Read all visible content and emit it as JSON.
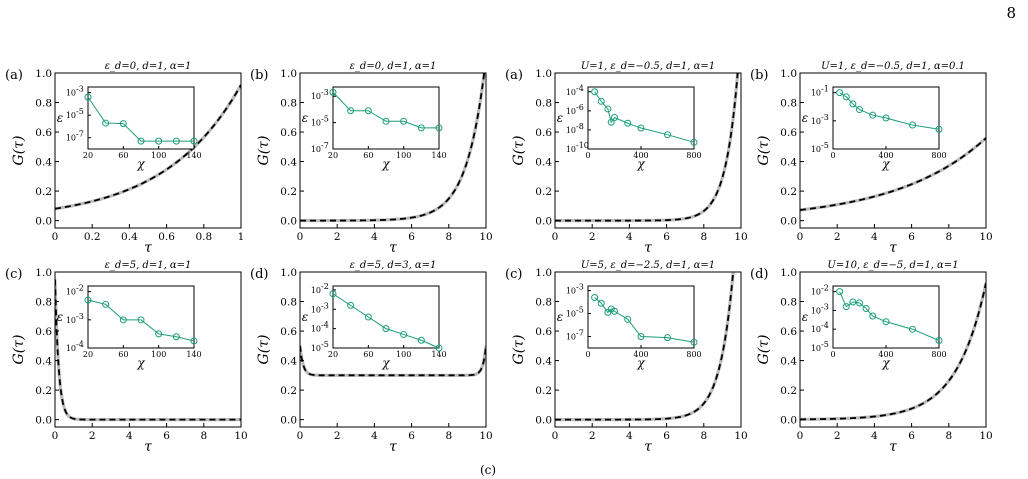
{
  "page": {
    "number": "8",
    "footer_fragment": "(c)"
  },
  "chart_data": [
    {
      "type": "line",
      "panel": "(a)",
      "title": "ε_d=0, d=1, α=1",
      "xlabel": "τ",
      "ylabel": "G(τ)",
      "xlim": [
        0,
        1
      ],
      "ylim": [
        -0.05,
        1.0
      ],
      "xticks": [
        0,
        0.2,
        0.4,
        0.6,
        0.8,
        1
      ],
      "yticks": [
        0.0,
        0.2,
        0.4,
        0.6,
        0.8,
        1.0
      ],
      "xticklabels": [
        "0",
        "0.2",
        "0.4",
        "0.6",
        "0.8",
        "1"
      ],
      "yticklabels": [
        "0.0",
        "0.2",
        "0.4",
        "0.6",
        "0.8",
        "1.0"
      ],
      "curve": {
        "model": "exp",
        "beta": 1,
        "a": 0.0803,
        "k": 2.438,
        "b": 0,
        "k2": 0
      },
      "series_styles": [
        "reference (solid gray)",
        "computed (dashed black)"
      ],
      "inset": {
        "xlabel": "χ",
        "ylabel": "ε",
        "log_y": true,
        "xlim": [
          20,
          140
        ],
        "ylim_exp": [
          -8,
          -2.5
        ],
        "xticks": [
          20,
          60,
          100,
          140
        ],
        "xticklabels": [
          "20",
          "60",
          "100",
          "140"
        ],
        "yticks": [
          -3,
          -5,
          -7
        ],
        "yticklabels": [
          "10",
          "10",
          "10"
        ],
        "yticksup": [
          "-3",
          "-5",
          "-7"
        ],
        "x": [
          20,
          40,
          60,
          80,
          100,
          120,
          140
        ],
        "log10_eps": [
          -3.4,
          -5.7,
          -5.75,
          -7.3,
          -7.3,
          -7.3,
          -7.3
        ]
      }
    },
    {
      "type": "line",
      "panel": "(b)",
      "title": "ε_d=0, d=1, α=1",
      "xlabel": "τ",
      "ylabel": "G(τ)",
      "xlim": [
        0,
        10
      ],
      "ylim": [
        -0.05,
        1.0
      ],
      "xticks": [
        0,
        2,
        4,
        6,
        8,
        10
      ],
      "yticks": [
        0.0,
        0.2,
        0.4,
        0.6,
        0.8,
        1.0
      ],
      "xticklabels": [
        "0",
        "2",
        "4",
        "6",
        "8",
        "10"
      ],
      "yticklabels": [
        "0.0",
        "0.2",
        "0.4",
        "0.6",
        "0.8",
        "1.0"
      ],
      "curve": {
        "model": "exp",
        "beta": 10,
        "a": 5e-05,
        "k": 1.0,
        "b": 0,
        "k2": 0
      },
      "series_styles": [
        "reference (solid gray)",
        "computed (dashed black)"
      ],
      "inset": {
        "xlabel": "χ",
        "ylabel": "ε",
        "log_y": true,
        "xlim": [
          20,
          140
        ],
        "ylim_exp": [
          -7,
          -2.3
        ],
        "xticks": [
          20,
          60,
          100,
          140
        ],
        "xticklabels": [
          "20",
          "60",
          "100",
          "140"
        ],
        "yticks": [
          -3,
          -5,
          -7
        ],
        "yticklabels": [
          "10",
          "10",
          "10"
        ],
        "yticksup": [
          "-3",
          "-5",
          "-7"
        ],
        "x": [
          20,
          40,
          60,
          80,
          100,
          120,
          140
        ],
        "log10_eps": [
          -2.7,
          -4.1,
          -4.1,
          -4.9,
          -4.9,
          -5.4,
          -5.4
        ]
      }
    },
    {
      "type": "line",
      "panel": "(a)",
      "title": "U=1, ε_d=−0.5, d=1, α=1",
      "xlabel": "τ",
      "ylabel": "G(τ)",
      "xlim": [
        0,
        10
      ],
      "ylim": [
        -0.05,
        1.0
      ],
      "xticks": [
        0,
        2,
        4,
        6,
        8,
        10
      ],
      "yticks": [
        0.0,
        0.2,
        0.4,
        0.6,
        0.8,
        1.0
      ],
      "xticklabels": [
        "0",
        "2",
        "4",
        "6",
        "8",
        "10"
      ],
      "yticklabels": [
        "0.0",
        "0.2",
        "0.4",
        "0.6",
        "0.8",
        "1.0"
      ],
      "curve": {
        "model": "exp",
        "beta": 10,
        "a": 4e-07,
        "k": 1.5,
        "b": 0,
        "k2": 0
      },
      "series_styles": [
        "reference (solid gray)",
        "computed (dashed black)"
      ],
      "inset": {
        "xlabel": "χ",
        "ylabel": "ε",
        "log_y": true,
        "xlim": [
          0,
          800
        ],
        "ylim_exp": [
          -10,
          -3.5
        ],
        "xticks": [
          0,
          400,
          800
        ],
        "xticklabels": [
          "0",
          "400",
          "800"
        ],
        "yticks": [
          -4,
          -6,
          -8,
          -10
        ],
        "yticklabels": [
          "10",
          "10",
          "10",
          "10"
        ],
        "yticksup": [
          "-4",
          "-6",
          "-8",
          "-10"
        ],
        "x": [
          50,
          100,
          150,
          175,
          200,
          300,
          400,
          600,
          800
        ],
        "log10_eps": [
          -4.0,
          -5.0,
          -5.8,
          -7.2,
          -6.7,
          -7.3,
          -7.8,
          -8.5,
          -9.3
        ]
      }
    },
    {
      "type": "line",
      "panel": "(b)",
      "title": "U=1, ε_d=−0.5, d=1, α=0.1",
      "xlabel": "τ",
      "ylabel": "G(τ)",
      "xlim": [
        0,
        10
      ],
      "ylim": [
        -0.05,
        1.0
      ],
      "xticks": [
        0,
        2,
        4,
        6,
        8,
        10
      ],
      "yticks": [
        0.0,
        0.2,
        0.4,
        0.6,
        0.8,
        1.0
      ],
      "xticklabels": [
        "0",
        "2",
        "4",
        "6",
        "8",
        "10"
      ],
      "yticklabels": [
        "0.0",
        "0.2",
        "0.4",
        "0.6",
        "0.8",
        "1.0"
      ],
      "curve": {
        "model": "exp",
        "beta": 10,
        "a": 0.072,
        "k": 0.205,
        "b": 0,
        "k2": 0
      },
      "series_styles": [
        "reference (solid gray)",
        "computed (dashed black)"
      ],
      "inset": {
        "xlabel": "χ",
        "ylabel": "ε",
        "log_y": true,
        "xlim": [
          0,
          800
        ],
        "ylim_exp": [
          -5,
          -0.6
        ],
        "xticks": [
          0,
          400,
          800
        ],
        "xticklabels": [
          "0",
          "400",
          "800"
        ],
        "yticks": [
          -1,
          -3,
          -5
        ],
        "yticklabels": [
          "10",
          "10",
          "10"
        ],
        "yticksup": [
          "-1",
          "-3",
          "-5"
        ],
        "x": [
          50,
          100,
          150,
          200,
          300,
          400,
          600,
          800
        ],
        "log10_eps": [
          -1.0,
          -1.3,
          -1.8,
          -2.2,
          -2.6,
          -2.8,
          -3.3,
          -3.6
        ]
      }
    },
    {
      "type": "line",
      "panel": "(c)",
      "title": "ε_d=5, d=1, α=1",
      "xlabel": "τ",
      "ylabel": "G(τ)",
      "xlim": [
        0,
        10
      ],
      "ylim": [
        -0.05,
        1.0
      ],
      "xticks": [
        0,
        2,
        4,
        6,
        8,
        10
      ],
      "yticks": [
        0.0,
        0.2,
        0.4,
        0.6,
        0.8,
        1.0
      ],
      "xticklabels": [
        "0",
        "2",
        "4",
        "6",
        "8",
        "10"
      ],
      "yticklabels": [
        "0.0",
        "0.2",
        "0.4",
        "0.6",
        "0.8",
        "1.0"
      ],
      "curve": {
        "model": "exp",
        "beta": 10,
        "a": 0,
        "k": 0,
        "b": 0.95,
        "k2": 5.0
      },
      "series_styles": [
        "reference (solid gray)",
        "computed (dashed black)"
      ],
      "inset": {
        "xlabel": "χ",
        "ylabel": "ε",
        "log_y": true,
        "xlim": [
          20,
          140
        ],
        "ylim_exp": [
          -4,
          -1.8
        ],
        "xticks": [
          20,
          60,
          100,
          140
        ],
        "xticklabels": [
          "20",
          "60",
          "100",
          "140"
        ],
        "yticks": [
          -2,
          -3,
          -4
        ],
        "yticklabels": [
          "10",
          "10",
          "10"
        ],
        "yticksup": [
          "-2",
          "-3",
          "-4"
        ],
        "x": [
          20,
          40,
          60,
          80,
          100,
          120,
          140
        ],
        "log10_eps": [
          -2.3,
          -2.45,
          -3.0,
          -3.0,
          -3.5,
          -3.6,
          -3.75
        ]
      }
    },
    {
      "type": "line",
      "panel": "(d)",
      "title": "ε_d=5, d=3, α=1",
      "xlabel": "τ",
      "ylabel": "G(τ)",
      "xlim": [
        0,
        10
      ],
      "ylim": [
        -0.05,
        1.0
      ],
      "xticks": [
        0,
        2,
        4,
        6,
        8,
        10
      ],
      "yticks": [
        0.0,
        0.2,
        0.4,
        0.6,
        0.8,
        1.0
      ],
      "xticklabels": [
        "0",
        "2",
        "4",
        "6",
        "8",
        "10"
      ],
      "yticklabels": [
        "0.0",
        "0.2",
        "0.4",
        "0.6",
        "0.8",
        "1.0"
      ],
      "curve": {
        "model": "plateau",
        "beta": 10,
        "a": 0.3,
        "k": 6.0,
        "b": 0.2,
        "k2": 0
      },
      "series_styles": [
        "reference (solid gray)",
        "computed (dashed black)"
      ],
      "inset": {
        "xlabel": "χ",
        "ylabel": "ε",
        "log_y": true,
        "xlim": [
          20,
          140
        ],
        "ylim_exp": [
          -5,
          -1.8
        ],
        "xticks": [
          20,
          60,
          100,
          140
        ],
        "xticklabels": [
          "20",
          "60",
          "100",
          "140"
        ],
        "yticks": [
          -2,
          -3,
          -4,
          -5
        ],
        "yticklabels": [
          "10",
          "10",
          "10",
          "10"
        ],
        "yticksup": [
          "-2",
          "-3",
          "-4",
          "-5"
        ],
        "x": [
          20,
          40,
          60,
          80,
          100,
          120,
          140
        ],
        "log10_eps": [
          -2.2,
          -2.8,
          -3.4,
          -4.0,
          -4.3,
          -4.6,
          -5.0
        ]
      }
    },
    {
      "type": "line",
      "panel": "(c)",
      "title": "U=5, ε_d=−2.5, d=1, α=1",
      "xlabel": "τ",
      "ylabel": "G(τ)",
      "xlim": [
        0,
        10
      ],
      "ylim": [
        -0.05,
        1.0
      ],
      "xticks": [
        0,
        2,
        4,
        6,
        8,
        10
      ],
      "yticks": [
        0.0,
        0.2,
        0.4,
        0.6,
        0.8,
        1.0
      ],
      "xticklabels": [
        "0",
        "2",
        "4",
        "6",
        "8",
        "10"
      ],
      "yticklabels": [
        "0.0",
        "0.2",
        "0.4",
        "0.6",
        "0.8",
        "1.0"
      ],
      "curve": {
        "model": "exp",
        "beta": 10,
        "a": 1.5e-06,
        "k": 1.4,
        "b": 0,
        "k2": 0
      },
      "series_styles": [
        "reference (solid gray)",
        "computed (dashed black)"
      ],
      "inset": {
        "xlabel": "χ",
        "ylabel": "ε",
        "log_y": true,
        "xlim": [
          0,
          800
        ],
        "ylim_exp": [
          -8,
          -2.6
        ],
        "xticks": [
          0,
          400,
          800
        ],
        "xticklabels": [
          "0",
          "400",
          "800"
        ],
        "yticks": [
          -3,
          -5,
          -7
        ],
        "yticklabels": [
          "10",
          "10",
          "10"
        ],
        "yticksup": [
          "-3",
          "-5",
          "-7"
        ],
        "x": [
          50,
          100,
          150,
          175,
          200,
          300,
          400,
          600,
          800
        ],
        "log10_eps": [
          -3.6,
          -4.1,
          -4.9,
          -4.6,
          -4.8,
          -5.5,
          -7.0,
          -7.1,
          -7.5
        ]
      }
    },
    {
      "type": "line",
      "panel": "(d)",
      "title": "U=10, ε_d=−5, d=1, α=1",
      "xlabel": "τ",
      "ylabel": "G(τ)",
      "xlim": [
        0,
        10
      ],
      "ylim": [
        -0.05,
        1.0
      ],
      "xticks": [
        0,
        2,
        4,
        6,
        8,
        10
      ],
      "yticks": [
        0.0,
        0.2,
        0.4,
        0.6,
        0.8,
        1.0
      ],
      "xticklabels": [
        "0",
        "2",
        "4",
        "6",
        "8",
        "10"
      ],
      "yticklabels": [
        "0.0",
        "0.2",
        "0.4",
        "0.6",
        "0.8",
        "1.0"
      ],
      "curve": {
        "model": "exp",
        "beta": 10,
        "a": 0.0017,
        "k": 0.63,
        "b": 0,
        "k2": 0
      },
      "series_styles": [
        "reference (solid gray)",
        "computed (dashed black)"
      ],
      "inset": {
        "xlabel": "χ",
        "ylabel": "ε",
        "log_y": true,
        "xlim": [
          0,
          800
        ],
        "ylim_exp": [
          -5,
          -1.7
        ],
        "xticks": [
          0,
          400,
          800
        ],
        "xticklabels": [
          "0",
          "400",
          "800"
        ],
        "yticks": [
          -2,
          -3,
          -4,
          -5
        ],
        "yticklabels": [
          "10",
          "10",
          "10",
          "10"
        ],
        "yticksup": [
          "-2",
          "-3",
          "-4",
          "-5"
        ],
        "x": [
          50,
          100,
          150,
          200,
          250,
          300,
          400,
          600,
          800
        ],
        "log10_eps": [
          -2.0,
          -2.8,
          -2.55,
          -2.6,
          -2.9,
          -3.3,
          -3.6,
          -4.0,
          -4.6
        ]
      }
    }
  ],
  "colors": {
    "inset_series": "#1a9e77",
    "reference_curve": "#bdbdbd",
    "dashed_curve": "#000000",
    "axes": "#000000"
  }
}
